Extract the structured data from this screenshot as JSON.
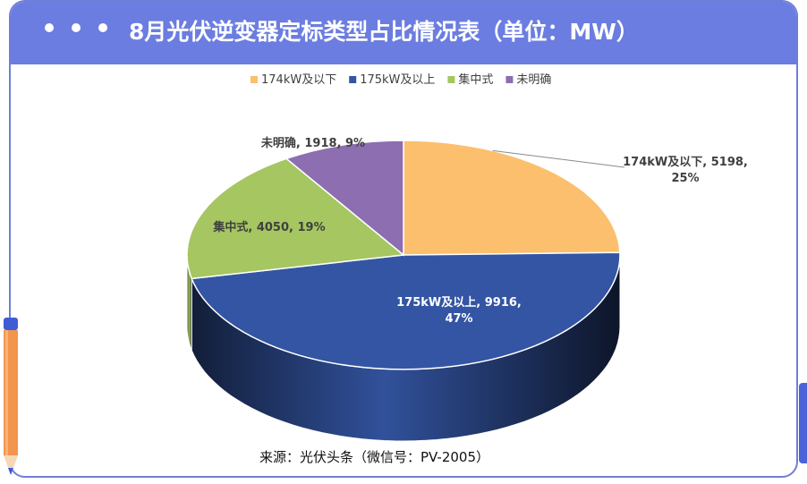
{
  "header": {
    "title": "8月光伏逆变器定标类型占比情况表（单位：MW）"
  },
  "chart_data": {
    "type": "pie",
    "title": "8月光伏逆变器定标类型占比情况表（单位：MW）",
    "unit": "MW",
    "legend_position": "top",
    "slices": [
      {
        "name": "174kW及以下",
        "value": 5198,
        "percent": 25,
        "color": "#fbbf6e",
        "label_line1": "174kW及以下, 5198,",
        "label_line2": "25%"
      },
      {
        "name": "175kW及以上",
        "value": 9916,
        "percent": 47,
        "color": "#3455a3",
        "label_line1": "175kW及以上, 9916,",
        "label_line2": "47%"
      },
      {
        "name": "集中式",
        "value": 4050,
        "percent": 19,
        "color": "#a5c661",
        "label_line1": "集中式, 4050, 19%",
        "label_line2": ""
      },
      {
        "name": "未明确",
        "value": 1918,
        "percent": 9,
        "color": "#8d6eb0",
        "label_line1": "未明确, 1918, 9%",
        "label_line2": ""
      }
    ]
  },
  "footer": {
    "source": "来源：光伏头条（微信号：PV-2005）"
  },
  "icons": {
    "window_dots": "three-dots-icon",
    "pen": "pencil-icon"
  }
}
